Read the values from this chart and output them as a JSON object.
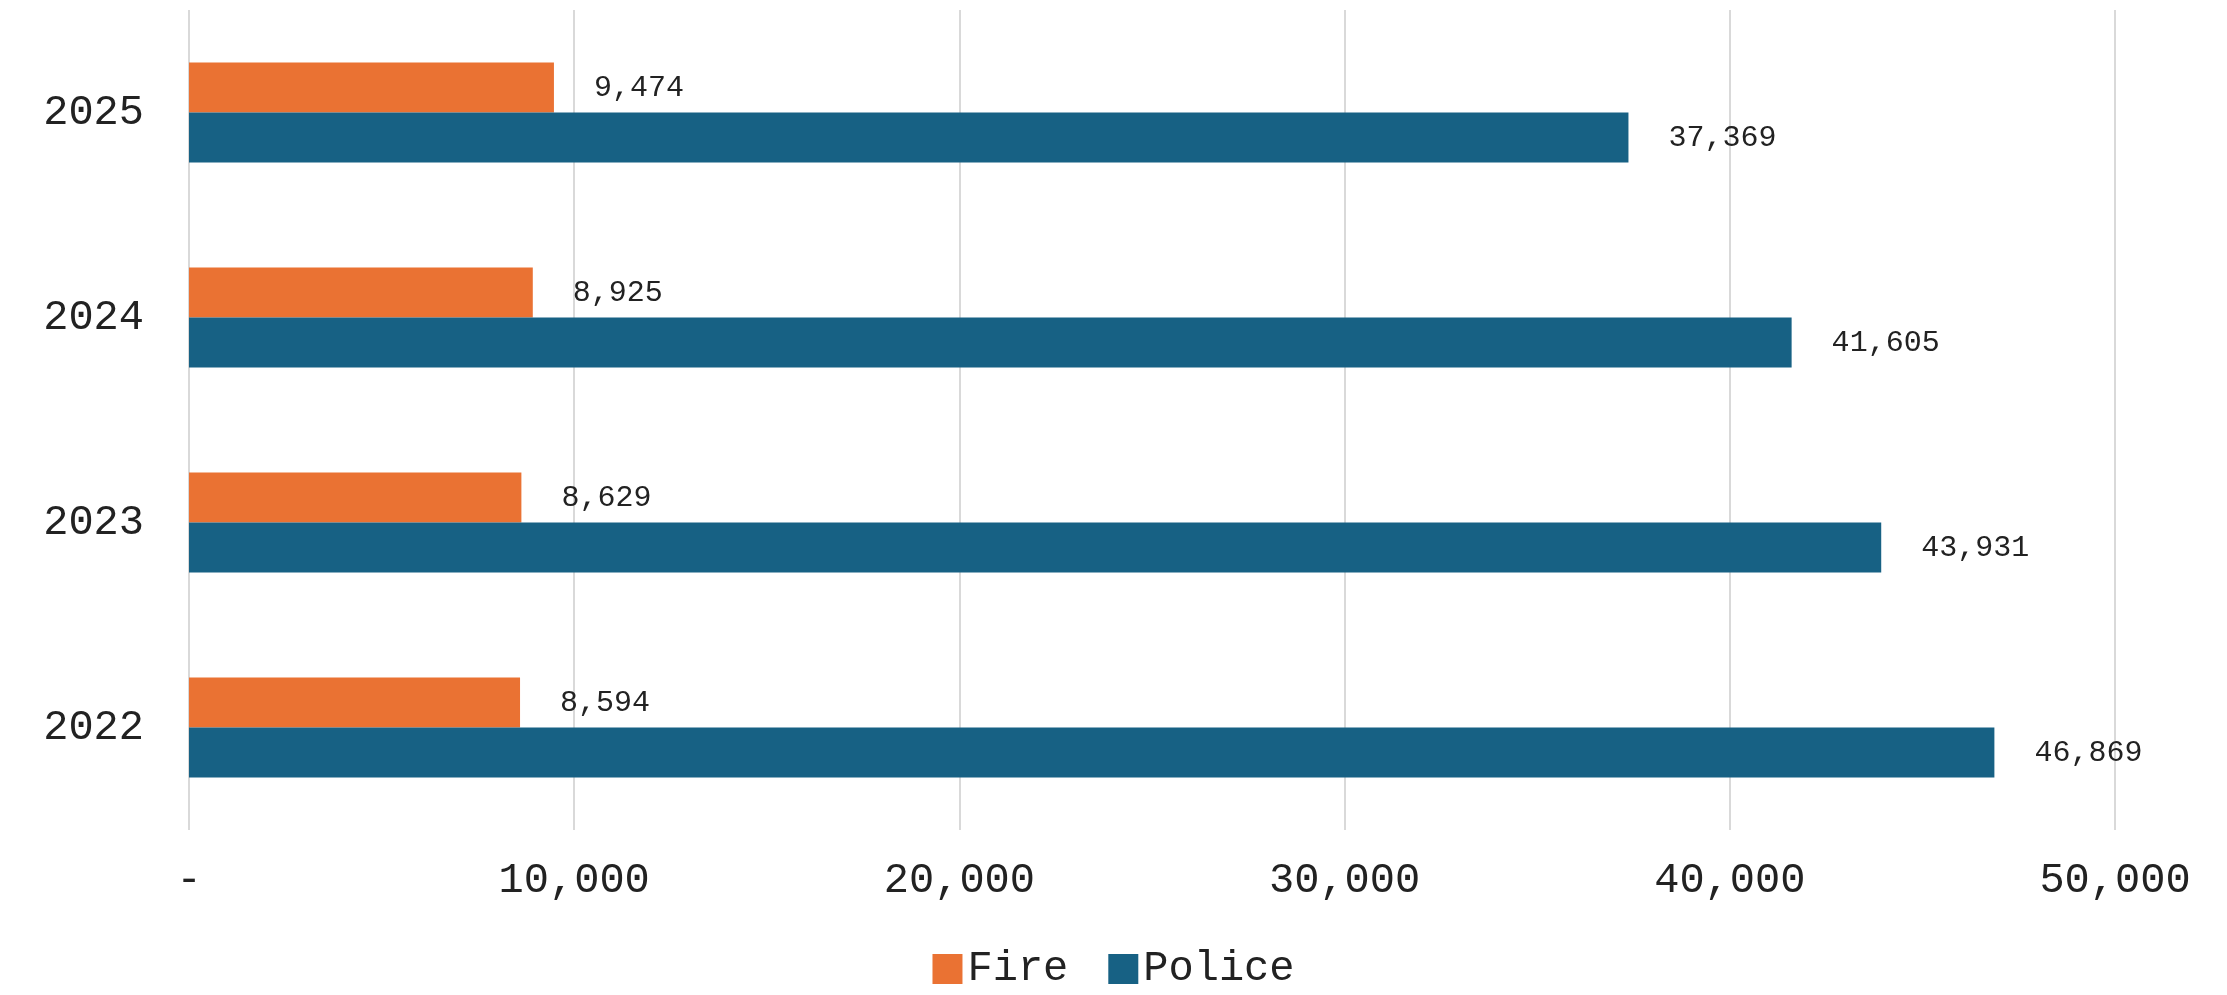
{
  "chart_data": {
    "type": "bar",
    "orientation": "horizontal",
    "categories": [
      "2025",
      "2024",
      "2023",
      "2022"
    ],
    "series": [
      {
        "name": "Fire",
        "color": "#ea7233",
        "values": [
          9474,
          8925,
          8629,
          8594
        ],
        "value_labels": [
          "9,474",
          "8,925",
          "8,629",
          "8,594"
        ]
      },
      {
        "name": "Police",
        "color": "#176184",
        "values": [
          37369,
          41605,
          43931,
          46869
        ],
        "value_labels": [
          "37,369",
          "41,605",
          "43,931",
          "46,869"
        ]
      }
    ],
    "xlim": [
      0,
      50000
    ],
    "xticks": [
      {
        "value": 0,
        "label": "-"
      },
      {
        "value": 10000,
        "label": "10,000"
      },
      {
        "value": 20000,
        "label": "20,000"
      },
      {
        "value": 30000,
        "label": "30,000"
      },
      {
        "value": 40000,
        "label": "40,000"
      },
      {
        "value": 50000,
        "label": "50,000"
      }
    ],
    "grid": "x",
    "legend": "bottom"
  }
}
